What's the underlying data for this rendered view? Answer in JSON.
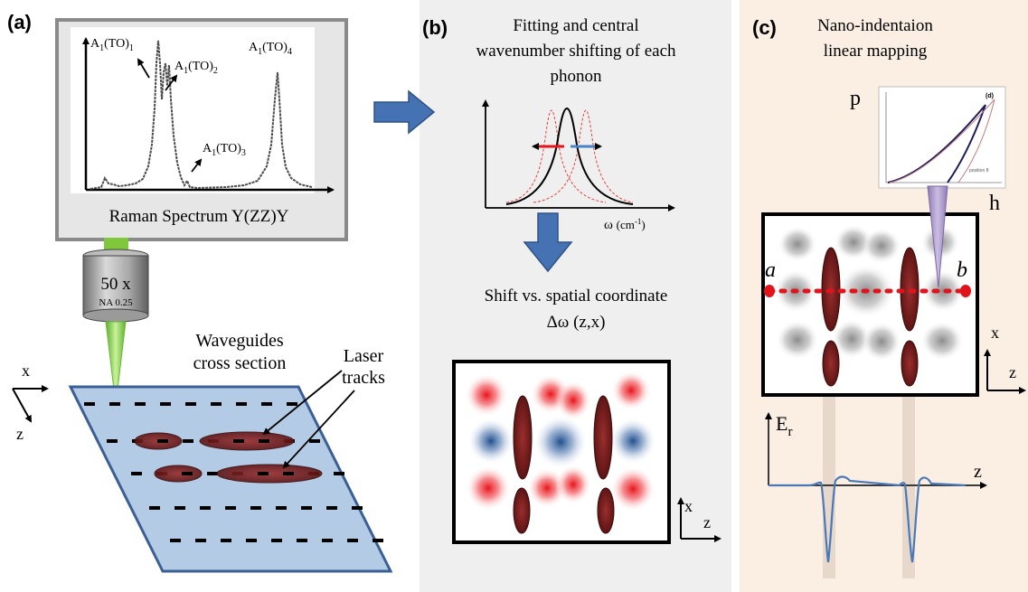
{
  "panels": {
    "a": {
      "tag": "(a)"
    },
    "b": {
      "tag": "(b)"
    },
    "c": {
      "tag": "(c)"
    }
  },
  "spectrum": {
    "caption": "Raman Spectrum Y(ZZ)Y",
    "peaks": [
      {
        "base": "A",
        "sub1": "1",
        "mid": "(TO)",
        "sub2": "1"
      },
      {
        "base": "A",
        "sub1": "1",
        "mid": "(TO)",
        "sub2": "2"
      },
      {
        "base": "A",
        "sub1": "1",
        "mid": "(TO)",
        "sub2": "3"
      },
      {
        "base": "A",
        "sub1": "1",
        "mid": "(TO)",
        "sub2": "4"
      }
    ]
  },
  "objective": {
    "magnification": "50 x",
    "na": "NA 0.25"
  },
  "sample": {
    "waveguides_line1": "Waveguides",
    "waveguides_line2": "cross section",
    "laser_line1": "Laser",
    "laser_line2": "tracks",
    "axis_x": "x",
    "axis_z": "z"
  },
  "fitting": {
    "title_line1": "Fitting and central",
    "title_line2": "wavenumber shifting of each",
    "title_line3": "phonon",
    "omega_label": "ω",
    "omega_unit": "(cm",
    "omega_exp": "-1",
    "omega_close": ")"
  },
  "shift": {
    "line1": "Shift vs. spatial coordinate",
    "line2": "Δω (z,x)",
    "axis_x": "x",
    "axis_z": "z"
  },
  "nano": {
    "title_line1": "Nano-indentaion",
    "title_line2": "linear mapping",
    "p_label": "p",
    "h_label": "h",
    "legend": "position 8",
    "inset_tag": "(d)",
    "point_a": "a",
    "point_b": "b",
    "axis_x": "x",
    "axis_z": "z",
    "er_base": "E",
    "er_sub": "r",
    "er_axis_z": "z"
  },
  "colors": {
    "panel_b_bg": "#efefef",
    "panel_c_bg": "#fbeee3",
    "arrow_blue": "#3e6fad",
    "track_red": "#7a1f1f",
    "sample_blue": "#b4cbe6",
    "laser_green": "#8ed34a"
  }
}
